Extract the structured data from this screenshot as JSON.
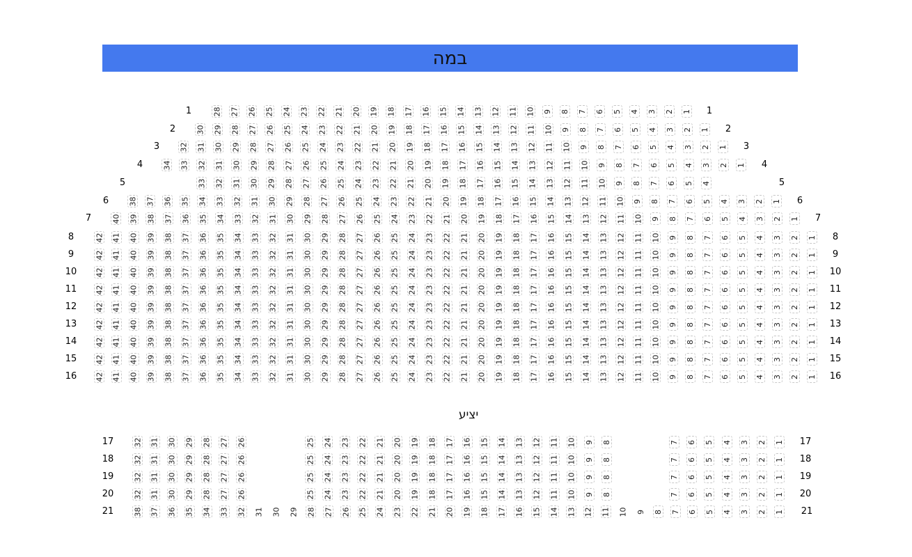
{
  "stage": {
    "label": "במה",
    "color": "#4479EE"
  },
  "balcony": {
    "label": "יציע"
  },
  "rows": [
    {
      "label": "1",
      "from": 28,
      "to": 1
    },
    {
      "label": "2",
      "from": 30,
      "to": 1
    },
    {
      "label": "3",
      "from": 32,
      "to": 1
    },
    {
      "label": "4",
      "from": 34,
      "to": 1
    },
    {
      "label": "5",
      "from": 33,
      "to": 4
    },
    {
      "label": "6",
      "from": 38,
      "to": 1
    },
    {
      "label": "7",
      "from": 40,
      "to": 1
    },
    {
      "label": "8",
      "from": 42,
      "to": 1
    },
    {
      "label": "9",
      "from": 42,
      "to": 1
    },
    {
      "label": "10",
      "from": 42,
      "to": 1
    },
    {
      "label": "11",
      "from": 42,
      "to": 1
    },
    {
      "label": "12",
      "from": 42,
      "to": 1
    },
    {
      "label": "13",
      "from": 42,
      "to": 1
    },
    {
      "label": "14",
      "from": 42,
      "to": 1
    },
    {
      "label": "15",
      "from": 42,
      "to": 1
    },
    {
      "label": "16",
      "from": 42,
      "to": 1
    },
    {
      "label": "17",
      "from": 32,
      "to": 1
    },
    {
      "label": "18",
      "from": 32,
      "to": 1
    },
    {
      "label": "19",
      "from": 32,
      "to": 1
    },
    {
      "label": "20",
      "from": 32,
      "to": 1
    },
    {
      "label": "21",
      "from": 38,
      "to": 1,
      "unavailable": [
        31,
        30,
        29,
        10,
        9
      ]
    }
  ]
}
